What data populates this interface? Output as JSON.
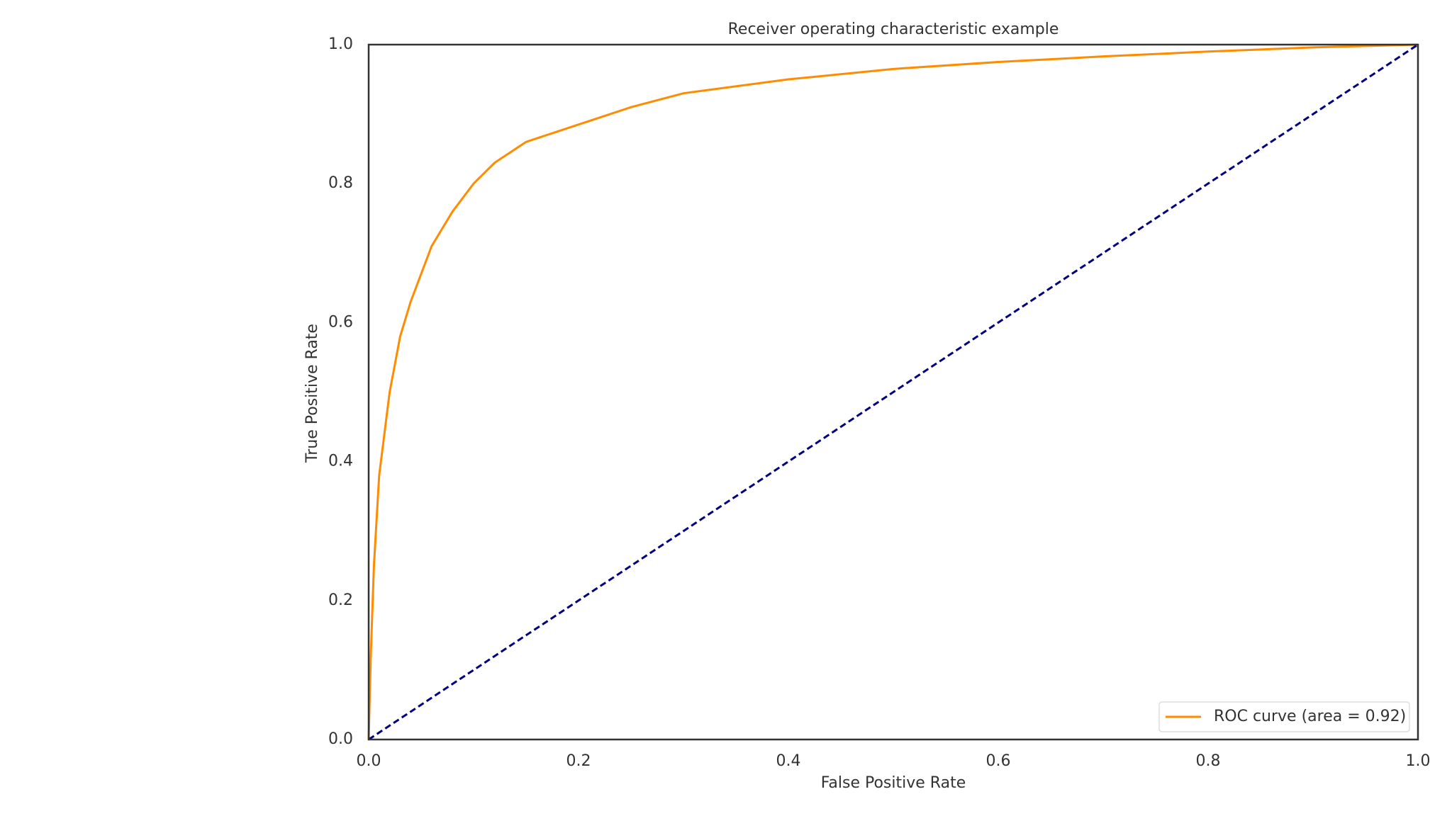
{
  "chart_data": {
    "type": "line",
    "title": "Receiver operating characteristic example",
    "x_label": "False Positive Rate",
    "y_label": "True Positive Rate",
    "series": [
      {
        "name": "ROC curve (area = 0.92)",
        "color": "#ff8c00",
        "linestyle": "solid",
        "x": [
          0,
          0.002,
          0.005,
          0.01,
          0.02,
          0.03,
          0.04,
          0.05,
          0.06,
          0.08,
          0.1,
          0.12,
          0.15,
          0.2,
          0.25,
          0.3,
          0.4,
          0.5,
          0.6,
          0.7,
          0.8,
          0.9,
          1.0
        ],
        "values": [
          0,
          0.12,
          0.25,
          0.38,
          0.5,
          0.58,
          0.63,
          0.67,
          0.71,
          0.76,
          0.8,
          0.83,
          0.86,
          0.885,
          0.91,
          0.93,
          0.95,
          0.965,
          0.975,
          0.983,
          0.99,
          0.996,
          1.0
        ]
      },
      {
        "color": "#000080",
        "linestyle": "dashed",
        "x": [
          0,
          1
        ],
        "values": [
          0,
          1
        ]
      }
    ],
    "xlim": [
      0,
      1
    ],
    "ylim": [
      0,
      1
    ],
    "xticks": [
      {
        "value": 0,
        "label": "0.0"
      },
      0.2,
      0.4,
      0.6,
      0.8,
      {
        "value": 1,
        "label": "1.0"
      }
    ],
    "yticks": [
      {
        "value": 0,
        "label": "0.0"
      },
      0.2,
      0.4,
      0.6,
      0.8,
      {
        "value": 1,
        "label": "1.0"
      }
    ],
    "grid": false,
    "legend": "lower right"
  }
}
